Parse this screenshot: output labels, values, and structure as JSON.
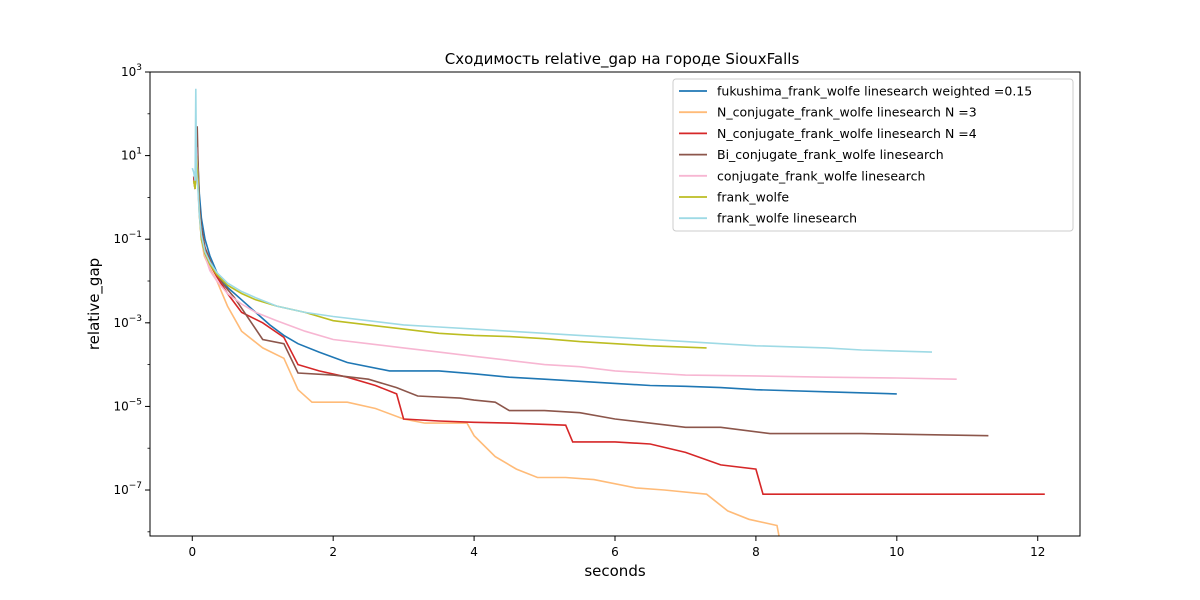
{
  "chart_data": {
    "type": "line",
    "title": "Сходимость relative_gap на городе SiouxFalls",
    "xlabel": "seconds",
    "ylabel": "relative_gap",
    "xlim": [
      -0.6,
      12.6
    ],
    "ylim_log10": [
      -8.1,
      3.0
    ],
    "yscale": "log",
    "grid": false,
    "legend_position": "top-right",
    "x_ticks": [
      {
        "value": 0,
        "label": "0"
      },
      {
        "value": 2,
        "label": "2"
      },
      {
        "value": 4,
        "label": "4"
      },
      {
        "value": 6,
        "label": "6"
      },
      {
        "value": 8,
        "label": "8"
      },
      {
        "value": 10,
        "label": "10"
      },
      {
        "value": 12,
        "label": "12"
      }
    ],
    "y_ticks": [
      {
        "exp": 3,
        "base": "10",
        "exponent": "3"
      },
      {
        "exp": 1,
        "base": "10",
        "exponent": "1"
      },
      {
        "exp": -1,
        "base": "10",
        "exponent": "−1"
      },
      {
        "exp": -3,
        "base": "10",
        "exponent": "−3"
      },
      {
        "exp": -5,
        "base": "10",
        "exponent": "−5"
      },
      {
        "exp": -7,
        "base": "10",
        "exponent": "−7"
      }
    ],
    "series": [
      {
        "name": "fukushima_frank_wolfe linesearch weighted =0.15",
        "color": "#1f77b4",
        "log10_points": [
          [
            0.02,
            0.5
          ],
          [
            0.04,
            0.2
          ],
          [
            0.06,
            1.4
          ],
          [
            0.08,
            0.8
          ],
          [
            0.1,
            0.1
          ],
          [
            0.13,
            -0.5
          ],
          [
            0.18,
            -1.0
          ],
          [
            0.25,
            -1.4
          ],
          [
            0.35,
            -1.8
          ],
          [
            0.5,
            -2.15
          ],
          [
            0.7,
            -2.45
          ],
          [
            0.9,
            -2.75
          ],
          [
            1.1,
            -3.05
          ],
          [
            1.3,
            -3.3
          ],
          [
            1.5,
            -3.5
          ],
          [
            1.8,
            -3.7
          ],
          [
            2.2,
            -3.95
          ],
          [
            2.8,
            -4.15
          ],
          [
            3.5,
            -4.15
          ],
          [
            4.0,
            -4.22
          ],
          [
            4.5,
            -4.3
          ],
          [
            5.0,
            -4.35
          ],
          [
            5.5,
            -4.4
          ],
          [
            6.0,
            -4.45
          ],
          [
            6.5,
            -4.5
          ],
          [
            7.0,
            -4.52
          ],
          [
            7.5,
            -4.55
          ],
          [
            8.0,
            -4.6
          ],
          [
            9.0,
            -4.65
          ],
          [
            10.0,
            -4.7
          ]
        ]
      },
      {
        "name": "N_conjugate_frank_wolfe linesearch N =3",
        "color": "#ffbb78",
        "log10_points": [
          [
            0.02,
            0.4
          ],
          [
            0.04,
            0.2
          ],
          [
            0.06,
            1.2
          ],
          [
            0.08,
            0.3
          ],
          [
            0.1,
            -0.3
          ],
          [
            0.13,
            -1.0
          ],
          [
            0.17,
            -1.4
          ],
          [
            0.25,
            -1.7
          ],
          [
            0.35,
            -2.0
          ],
          [
            0.5,
            -2.6
          ],
          [
            0.7,
            -3.2
          ],
          [
            1.0,
            -3.6
          ],
          [
            1.3,
            -3.85
          ],
          [
            1.5,
            -4.6
          ],
          [
            1.7,
            -4.9
          ],
          [
            2.2,
            -4.9
          ],
          [
            2.6,
            -5.05
          ],
          [
            3.0,
            -5.3
          ],
          [
            3.3,
            -5.4
          ],
          [
            3.9,
            -5.4
          ],
          [
            4.0,
            -5.7
          ],
          [
            4.3,
            -6.2
          ],
          [
            4.6,
            -6.5
          ],
          [
            4.9,
            -6.7
          ],
          [
            5.3,
            -6.7
          ],
          [
            5.7,
            -6.75
          ],
          [
            6.3,
            -6.95
          ],
          [
            6.7,
            -7.0
          ],
          [
            7.3,
            -7.1
          ],
          [
            7.6,
            -7.5
          ],
          [
            7.9,
            -7.7
          ],
          [
            8.3,
            -7.85
          ],
          [
            8.35,
            -8.3
          ],
          [
            11.7,
            -8.3
          ]
        ]
      },
      {
        "name": "N_conjugate_frank_wolfe linesearch N =4",
        "color": "#d62728",
        "log10_points": [
          [
            0.02,
            0.5
          ],
          [
            0.04,
            0.2
          ],
          [
            0.06,
            1.6
          ],
          [
            0.08,
            0.5
          ],
          [
            0.1,
            -0.3
          ],
          [
            0.13,
            -0.9
          ],
          [
            0.18,
            -1.3
          ],
          [
            0.25,
            -1.6
          ],
          [
            0.35,
            -1.9
          ],
          [
            0.5,
            -2.3
          ],
          [
            0.7,
            -2.75
          ],
          [
            1.0,
            -3.0
          ],
          [
            1.3,
            -3.35
          ],
          [
            1.5,
            -4.0
          ],
          [
            1.8,
            -4.15
          ],
          [
            2.2,
            -4.3
          ],
          [
            2.6,
            -4.5
          ],
          [
            2.9,
            -4.7
          ],
          [
            3.0,
            -5.3
          ],
          [
            3.5,
            -5.35
          ],
          [
            4.0,
            -5.38
          ],
          [
            4.5,
            -5.4
          ],
          [
            5.3,
            -5.45
          ],
          [
            5.4,
            -5.85
          ],
          [
            6.0,
            -5.85
          ],
          [
            6.5,
            -5.9
          ],
          [
            7.0,
            -6.1
          ],
          [
            7.5,
            -6.4
          ],
          [
            8.0,
            -6.5
          ],
          [
            8.1,
            -7.1
          ],
          [
            12.1,
            -7.1
          ]
        ]
      },
      {
        "name": "Bi_conjugate_frank_wolfe linesearch",
        "color": "#8c564b",
        "log10_points": [
          [
            0.02,
            0.4
          ],
          [
            0.04,
            0.2
          ],
          [
            0.06,
            1.3
          ],
          [
            0.07,
            1.7
          ],
          [
            0.08,
            1.0
          ],
          [
            0.1,
            -0.2
          ],
          [
            0.13,
            -0.7
          ],
          [
            0.18,
            -1.2
          ],
          [
            0.3,
            -1.7
          ],
          [
            0.45,
            -2.1
          ],
          [
            0.6,
            -2.4
          ],
          [
            0.8,
            -2.9
          ],
          [
            1.0,
            -3.4
          ],
          [
            1.3,
            -3.5
          ],
          [
            1.5,
            -4.2
          ],
          [
            2.0,
            -4.25
          ],
          [
            2.5,
            -4.35
          ],
          [
            2.9,
            -4.55
          ],
          [
            3.2,
            -4.75
          ],
          [
            3.8,
            -4.8
          ],
          [
            4.0,
            -4.85
          ],
          [
            4.3,
            -4.9
          ],
          [
            4.5,
            -5.1
          ],
          [
            5.0,
            -5.1
          ],
          [
            5.5,
            -5.15
          ],
          [
            6.0,
            -5.3
          ],
          [
            7.0,
            -5.5
          ],
          [
            7.5,
            -5.5
          ],
          [
            8.2,
            -5.65
          ],
          [
            9.5,
            -5.65
          ],
          [
            11.3,
            -5.7
          ]
        ]
      },
      {
        "name": "conjugate_frank_wolfe linesearch",
        "color": "#f7b6d2",
        "log10_points": [
          [
            0.02,
            0.4
          ],
          [
            0.04,
            0.2
          ],
          [
            0.06,
            1.2
          ],
          [
            0.08,
            0.4
          ],
          [
            0.1,
            -0.4
          ],
          [
            0.13,
            -1.0
          ],
          [
            0.18,
            -1.4
          ],
          [
            0.25,
            -1.75
          ],
          [
            0.35,
            -2.0
          ],
          [
            0.5,
            -2.3
          ],
          [
            0.7,
            -2.55
          ],
          [
            0.9,
            -2.75
          ],
          [
            1.2,
            -2.95
          ],
          [
            1.6,
            -3.2
          ],
          [
            2.0,
            -3.4
          ],
          [
            2.5,
            -3.5
          ],
          [
            3.0,
            -3.6
          ],
          [
            3.5,
            -3.7
          ],
          [
            4.0,
            -3.8
          ],
          [
            4.5,
            -3.9
          ],
          [
            5.0,
            -4.0
          ],
          [
            5.5,
            -4.05
          ],
          [
            6.0,
            -4.15
          ],
          [
            6.5,
            -4.2
          ],
          [
            7.0,
            -4.25
          ],
          [
            8.0,
            -4.27
          ],
          [
            9.0,
            -4.3
          ],
          [
            10.0,
            -4.32
          ],
          [
            10.85,
            -4.35
          ]
        ]
      },
      {
        "name": "frank_wolfe",
        "color": "#bcbd22",
        "log10_points": [
          [
            0.02,
            0.4
          ],
          [
            0.04,
            0.2
          ],
          [
            0.06,
            1.0
          ],
          [
            0.08,
            0.4
          ],
          [
            0.1,
            -0.4
          ],
          [
            0.13,
            -1.0
          ],
          [
            0.18,
            -1.35
          ],
          [
            0.25,
            -1.6
          ],
          [
            0.35,
            -1.85
          ],
          [
            0.5,
            -2.1
          ],
          [
            0.7,
            -2.3
          ],
          [
            0.9,
            -2.45
          ],
          [
            1.2,
            -2.6
          ],
          [
            1.6,
            -2.75
          ],
          [
            2.0,
            -2.95
          ],
          [
            2.5,
            -3.05
          ],
          [
            3.0,
            -3.15
          ],
          [
            3.5,
            -3.25
          ],
          [
            4.0,
            -3.3
          ],
          [
            4.5,
            -3.33
          ],
          [
            5.0,
            -3.38
          ],
          [
            5.5,
            -3.45
          ],
          [
            6.0,
            -3.5
          ],
          [
            6.5,
            -3.55
          ],
          [
            7.3,
            -3.6
          ]
        ]
      },
      {
        "name": "frank_wolfe linesearch",
        "color": "#9edae5",
        "log10_points": [
          [
            0.0,
            0.7
          ],
          [
            0.02,
            0.6
          ],
          [
            0.04,
            0.4
          ],
          [
            0.05,
            2.6
          ],
          [
            0.06,
            0.6
          ],
          [
            0.08,
            0.2
          ],
          [
            0.1,
            -0.4
          ],
          [
            0.13,
            -0.9
          ],
          [
            0.18,
            -1.3
          ],
          [
            0.25,
            -1.55
          ],
          [
            0.35,
            -1.8
          ],
          [
            0.5,
            -2.05
          ],
          [
            0.7,
            -2.25
          ],
          [
            0.9,
            -2.4
          ],
          [
            1.2,
            -2.6
          ],
          [
            1.6,
            -2.75
          ],
          [
            2.0,
            -2.85
          ],
          [
            2.5,
            -2.95
          ],
          [
            3.0,
            -3.05
          ],
          [
            3.5,
            -3.1
          ],
          [
            4.0,
            -3.15
          ],
          [
            4.5,
            -3.2
          ],
          [
            5.0,
            -3.25
          ],
          [
            5.5,
            -3.3
          ],
          [
            6.0,
            -3.35
          ],
          [
            6.5,
            -3.4
          ],
          [
            7.0,
            -3.45
          ],
          [
            7.5,
            -3.5
          ],
          [
            8.0,
            -3.55
          ],
          [
            9.0,
            -3.6
          ],
          [
            9.5,
            -3.65
          ],
          [
            10.5,
            -3.7
          ]
        ]
      }
    ]
  }
}
